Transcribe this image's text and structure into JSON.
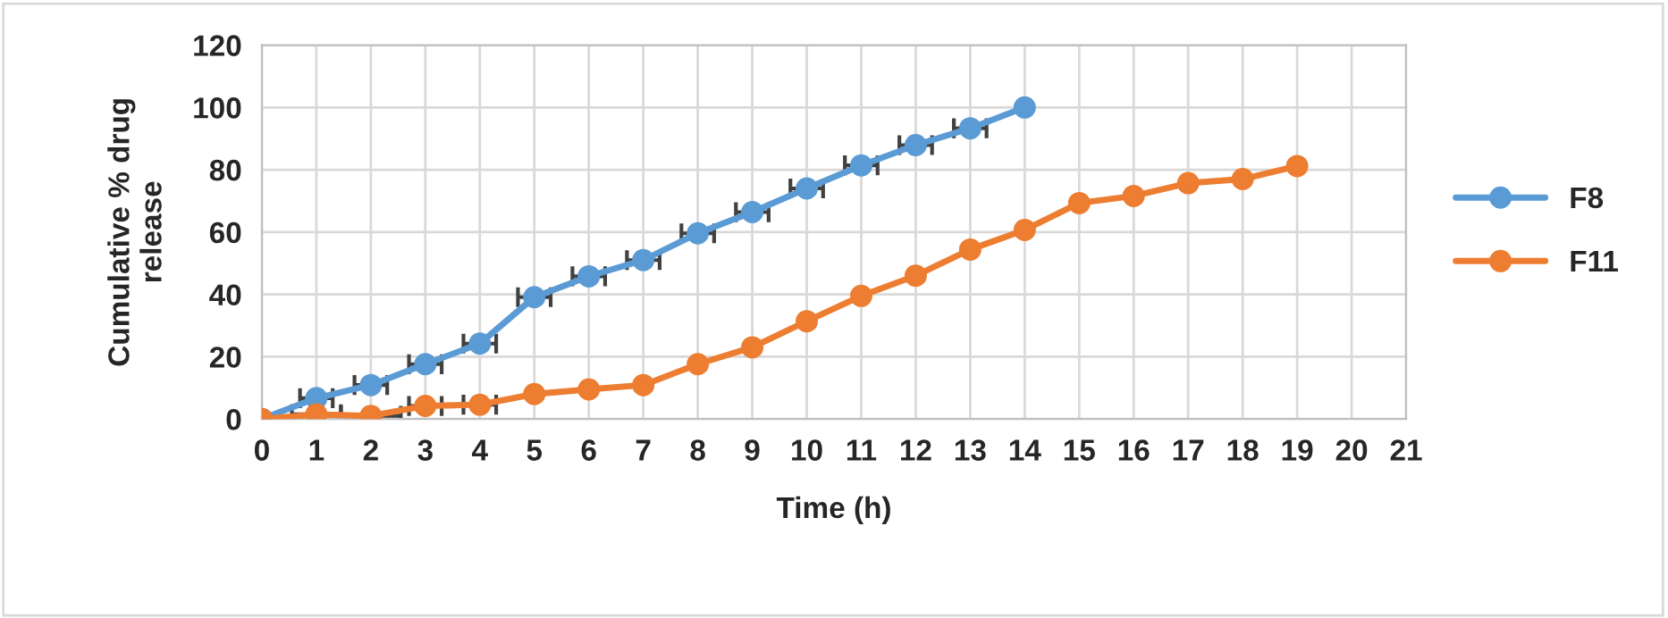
{
  "chart_data": {
    "type": "line",
    "xlabel": "Time (h)",
    "ylabel": "Cumulative % drug release",
    "x": [
      0,
      1,
      2,
      3,
      4,
      5,
      6,
      7,
      8,
      9,
      10,
      11,
      12,
      13,
      14,
      15,
      16,
      17,
      18,
      19
    ],
    "xlim": [
      0,
      21
    ],
    "xticks": [
      0,
      1,
      2,
      3,
      4,
      5,
      6,
      7,
      8,
      9,
      10,
      11,
      12,
      13,
      14,
      15,
      16,
      17,
      18,
      19,
      20,
      21
    ],
    "ylim": [
      0,
      120
    ],
    "yticks": [
      0,
      20,
      40,
      60,
      80,
      100,
      120
    ],
    "grid": true,
    "legend": "right",
    "marker": "circle",
    "line_style": "solid",
    "series": [
      {
        "name": "F8",
        "color": "#5b9bd5",
        "values": [
          0,
          6.7,
          10.9,
          17.6,
          24.2,
          39.1,
          45.8,
          51,
          59.6,
          66.4,
          74,
          81.4,
          87.9,
          93.3,
          100,
          null,
          null,
          null,
          null,
          null
        ],
        "xerrors": [
          null,
          0.3,
          0.3,
          0.3,
          0.3,
          0.3,
          0.3,
          0.3,
          0.3,
          0.3,
          0.3,
          0.3,
          0.3,
          0.3,
          null,
          null,
          null,
          null,
          null,
          null
        ]
      },
      {
        "name": "F11",
        "color": "#ed7d31",
        "values": [
          0,
          1.5,
          1,
          4.2,
          4.6,
          8,
          9.5,
          10.9,
          17.6,
          23,
          31.4,
          39.5,
          46,
          54.4,
          60.7,
          69.3,
          71.6,
          75.7,
          77,
          81.2
        ],
        "xerrors": [
          null,
          0.45,
          0.55,
          0.3,
          0.3,
          null,
          null,
          null,
          null,
          null,
          null,
          null,
          null,
          null,
          null,
          null,
          null,
          null,
          null,
          null
        ]
      }
    ]
  }
}
